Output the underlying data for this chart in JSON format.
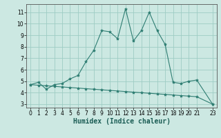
{
  "xlabel": "Humidex (Indice chaleur)",
  "line1_x": [
    0,
    1,
    2,
    3,
    4,
    5,
    6,
    7,
    8,
    9,
    10,
    11,
    12,
    13,
    14,
    15,
    16,
    17,
    18,
    19,
    20,
    21,
    23
  ],
  "line1_y": [
    4.7,
    4.9,
    4.3,
    4.7,
    4.8,
    5.2,
    5.5,
    6.7,
    7.7,
    9.4,
    9.3,
    8.7,
    11.3,
    8.5,
    9.4,
    11.0,
    9.4,
    8.2,
    4.9,
    4.8,
    5.0,
    5.1,
    3.0
  ],
  "line2_x": [
    0,
    1,
    2,
    3,
    4,
    5,
    6,
    7,
    8,
    9,
    10,
    11,
    12,
    13,
    14,
    15,
    16,
    17,
    18,
    19,
    20,
    21,
    23
  ],
  "line2_y": [
    4.7,
    4.65,
    4.6,
    4.55,
    4.5,
    4.45,
    4.4,
    4.35,
    4.3,
    4.25,
    4.2,
    4.15,
    4.1,
    4.05,
    4.0,
    3.95,
    3.9,
    3.85,
    3.8,
    3.75,
    3.7,
    3.65,
    3.0
  ],
  "line_color": "#2e7d72",
  "bg_color": "#cce8e2",
  "grid_color": "#9eccc4",
  "ylim": [
    2.7,
    11.7
  ],
  "xlim": [
    -0.5,
    23.5
  ],
  "yticks": [
    3,
    4,
    5,
    6,
    7,
    8,
    9,
    10,
    11
  ],
  "xticks": [
    0,
    1,
    2,
    3,
    4,
    5,
    6,
    7,
    8,
    9,
    10,
    11,
    12,
    13,
    14,
    15,
    16,
    17,
    18,
    19,
    20,
    21,
    23
  ],
  "tick_fontsize": 5.5,
  "xlabel_fontsize": 7.0,
  "marker": "*",
  "marker_size": 3.0,
  "linewidth": 0.8
}
